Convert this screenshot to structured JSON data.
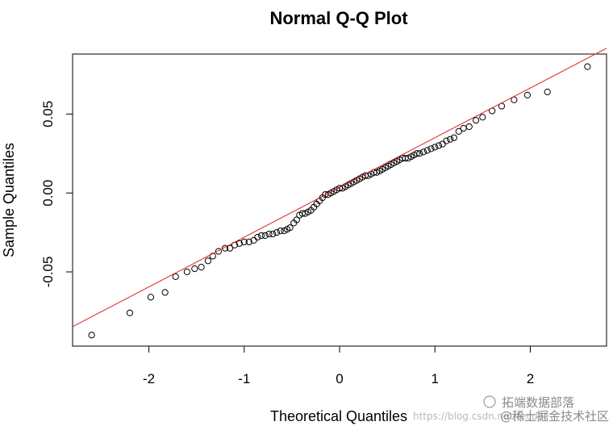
{
  "chart_data": {
    "type": "scatter",
    "title": "Normal Q-Q Plot",
    "xlabel": "Theoretical Quantiles",
    "ylabel": "Sample Quantiles",
    "xlim": [
      -2.8,
      2.8
    ],
    "ylim": [
      -0.097,
      0.088
    ],
    "xticks": [
      -2,
      -1,
      0,
      1,
      2
    ],
    "xtick_labels": [
      "-2",
      "-1",
      "0",
      "1",
      "2"
    ],
    "yticks": [
      -0.05,
      0.0,
      0.05
    ],
    "ytick_labels": [
      "-0.05",
      "0.00",
      "0.05"
    ],
    "grid": false,
    "legend": "none",
    "marker": "open-circle",
    "point_color": "#000000",
    "reference_line": {
      "color": "#e02020",
      "intercept": 0.0035,
      "slope": 0.0315
    },
    "points": [
      [
        -2.6,
        -0.09
      ],
      [
        -2.2,
        -0.076
      ],
      [
        -1.98,
        -0.066
      ],
      [
        -1.83,
        -0.063
      ],
      [
        -1.72,
        -0.053
      ],
      [
        -1.6,
        -0.05
      ],
      [
        -1.52,
        -0.048
      ],
      [
        -1.45,
        -0.047
      ],
      [
        -1.38,
        -0.043
      ],
      [
        -1.33,
        -0.04
      ],
      [
        -1.27,
        -0.037
      ],
      [
        -1.2,
        -0.035
      ],
      [
        -1.15,
        -0.035
      ],
      [
        -1.1,
        -0.033
      ],
      [
        -1.05,
        -0.032
      ],
      [
        -1.0,
        -0.031
      ],
      [
        -0.95,
        -0.031
      ],
      [
        -0.9,
        -0.03
      ],
      [
        -0.86,
        -0.028
      ],
      [
        -0.82,
        -0.027
      ],
      [
        -0.78,
        -0.027
      ],
      [
        -0.74,
        -0.026
      ],
      [
        -0.7,
        -0.026
      ],
      [
        -0.66,
        -0.025
      ],
      [
        -0.62,
        -0.024
      ],
      [
        -0.58,
        -0.024
      ],
      [
        -0.55,
        -0.023
      ],
      [
        -0.52,
        -0.022
      ],
      [
        -0.48,
        -0.019
      ],
      [
        -0.45,
        -0.017
      ],
      [
        -0.42,
        -0.014
      ],
      [
        -0.39,
        -0.013
      ],
      [
        -0.36,
        -0.013
      ],
      [
        -0.33,
        -0.012
      ],
      [
        -0.3,
        -0.011
      ],
      [
        -0.27,
        -0.009
      ],
      [
        -0.24,
        -0.007
      ],
      [
        -0.21,
        -0.005
      ],
      [
        -0.18,
        -0.003
      ],
      [
        -0.15,
        -0.001
      ],
      [
        -0.12,
        -0.001
      ],
      [
        -0.09,
        0.0
      ],
      [
        -0.06,
        0.001
      ],
      [
        -0.03,
        0.002
      ],
      [
        0.0,
        0.003
      ],
      [
        0.03,
        0.003
      ],
      [
        0.06,
        0.004
      ],
      [
        0.09,
        0.005
      ],
      [
        0.12,
        0.006
      ],
      [
        0.15,
        0.007
      ],
      [
        0.18,
        0.008
      ],
      [
        0.21,
        0.009
      ],
      [
        0.24,
        0.01
      ],
      [
        0.27,
        0.011
      ],
      [
        0.3,
        0.011
      ],
      [
        0.33,
        0.012
      ],
      [
        0.36,
        0.013
      ],
      [
        0.39,
        0.013
      ],
      [
        0.42,
        0.014
      ],
      [
        0.45,
        0.015
      ],
      [
        0.48,
        0.016
      ],
      [
        0.51,
        0.017
      ],
      [
        0.54,
        0.018
      ],
      [
        0.57,
        0.019
      ],
      [
        0.6,
        0.02
      ],
      [
        0.63,
        0.021
      ],
      [
        0.66,
        0.022
      ],
      [
        0.69,
        0.022
      ],
      [
        0.72,
        0.022
      ],
      [
        0.75,
        0.023
      ],
      [
        0.78,
        0.024
      ],
      [
        0.81,
        0.025
      ],
      [
        0.84,
        0.025
      ],
      [
        0.88,
        0.026
      ],
      [
        0.92,
        0.027
      ],
      [
        0.96,
        0.028
      ],
      [
        1.0,
        0.029
      ],
      [
        1.04,
        0.03
      ],
      [
        1.08,
        0.031
      ],
      [
        1.12,
        0.033
      ],
      [
        1.16,
        0.034
      ],
      [
        1.2,
        0.035
      ],
      [
        1.25,
        0.039
      ],
      [
        1.3,
        0.041
      ],
      [
        1.36,
        0.042
      ],
      [
        1.43,
        0.046
      ],
      [
        1.5,
        0.048
      ],
      [
        1.6,
        0.052
      ],
      [
        1.7,
        0.055
      ],
      [
        1.83,
        0.059
      ],
      [
        1.97,
        0.062
      ],
      [
        2.18,
        0.064
      ],
      [
        2.6,
        0.08
      ]
    ]
  },
  "watermark": {
    "channel": "拓端数据部落",
    "url_text": "https://blog.csdn.net/tecdat",
    "community": "@稀土掘金技术社区"
  }
}
